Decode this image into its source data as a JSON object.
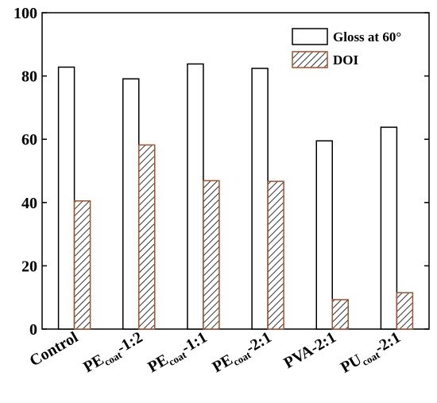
{
  "chart_data": {
    "type": "bar",
    "title": "",
    "xlabel": "",
    "ylabel": "",
    "ylim": [
      0,
      100
    ],
    "yticks": [
      0,
      20,
      40,
      60,
      80,
      100
    ],
    "grid": false,
    "legend_position": "top-right",
    "categories": [
      {
        "main": "Control",
        "sub": "",
        "tail": ""
      },
      {
        "main": "PE",
        "sub": "coat",
        "tail": "-1:2"
      },
      {
        "main": "PE",
        "sub": "coat",
        "tail": "-1:1"
      },
      {
        "main": "PE",
        "sub": "coat",
        "tail": "-2:1"
      },
      {
        "main": "PVA-2:1",
        "sub": "",
        "tail": ""
      },
      {
        "main": "PU",
        "sub": "coat",
        "tail": "-2:1"
      }
    ],
    "series": [
      {
        "name": "Gloss at 60°",
        "values": [
          82.8,
          79.1,
          83.8,
          82.4,
          59.5,
          63.8
        ],
        "fill": "#ffffff",
        "stroke": "#000000",
        "pattern": "none"
      },
      {
        "name": "DOI",
        "values": [
          40.5,
          58.2,
          46.9,
          46.7,
          9.3,
          11.5
        ],
        "fill": "#ffffff",
        "stroke": "#a0522d",
        "pattern": "hatch"
      }
    ]
  }
}
